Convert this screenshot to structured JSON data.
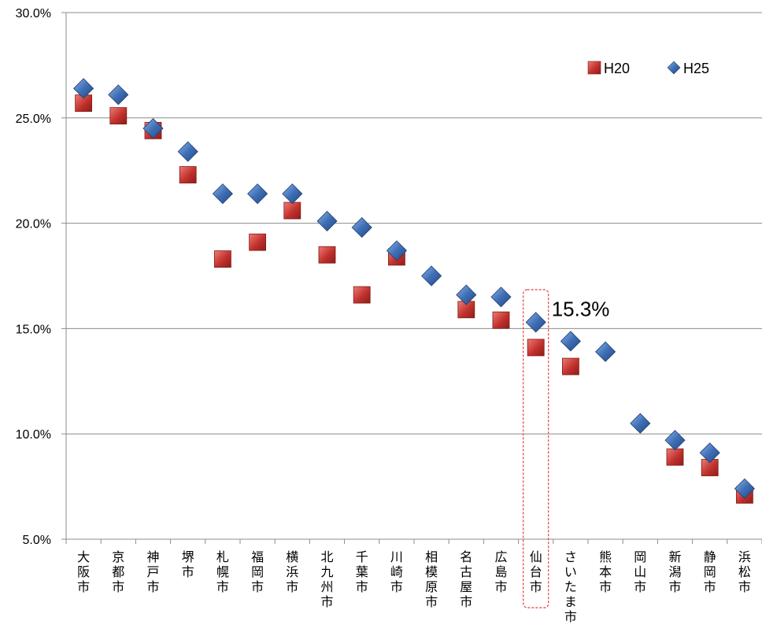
{
  "chart_data": {
    "type": "scatter",
    "categories": [
      "大阪市",
      "京都市",
      "神戸市",
      "堺市",
      "札幌市",
      "福岡市",
      "横浜市",
      "北九州市",
      "千葉市",
      "川崎市",
      "相模原市",
      "名古屋市",
      "広島市",
      "仙台市",
      "さいたま市",
      "熊本市",
      "岡山市",
      "新潟市",
      "静岡市",
      "浜松市"
    ],
    "series": [
      {
        "name": "H20",
        "marker": "square",
        "color": "#c0312d",
        "values": [
          25.7,
          25.1,
          24.4,
          22.3,
          18.3,
          19.1,
          20.6,
          18.5,
          16.6,
          18.4,
          null,
          15.9,
          15.4,
          14.1,
          13.2,
          null,
          null,
          8.9,
          8.4,
          7.1
        ]
      },
      {
        "name": "H25",
        "marker": "diamond",
        "color": "#3e6fb6",
        "values": [
          26.4,
          26.1,
          24.5,
          23.4,
          21.4,
          21.4,
          21.4,
          20.1,
          19.8,
          18.7,
          17.5,
          16.6,
          16.5,
          15.3,
          14.4,
          13.9,
          10.5,
          9.7,
          9.1,
          7.4
        ]
      }
    ],
    "ylim": [
      5,
      30
    ],
    "yticks": [
      "5.0%",
      "10.0%",
      "15.0%",
      "20.0%",
      "25.0%",
      "30.0%"
    ],
    "ytick_values": [
      5,
      10,
      15,
      20,
      25,
      30
    ],
    "grid": "horizontal",
    "legend_position": "top-right",
    "annotation": {
      "text": "15.3%",
      "category": "仙台市"
    },
    "highlight_category": "仙台市",
    "colors": {
      "grid": "#8c8c8c",
      "highlight": "#e0403a"
    }
  }
}
